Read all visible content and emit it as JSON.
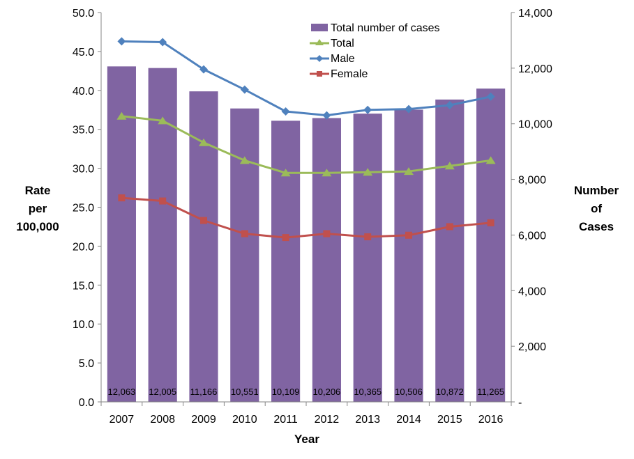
{
  "chart_data": {
    "type": "bar",
    "title": "",
    "categories": [
      "2007",
      "2008",
      "2009",
      "2010",
      "2011",
      "2012",
      "2013",
      "2014",
      "2015",
      "2016"
    ],
    "xlabel": "Year",
    "ylabel_left": [
      "Rate",
      "per",
      "100,000"
    ],
    "ylabel_right": [
      "Number",
      "of",
      "Cases"
    ],
    "ylim_left": [
      0,
      50
    ],
    "ylim_right": [
      0,
      14000
    ],
    "left_ticks": [
      "0.0",
      "5.0",
      "10.0",
      "15.0",
      "20.0",
      "25.0",
      "30.0",
      "35.0",
      "40.0",
      "45.0",
      "50.0"
    ],
    "right_ticks": [
      "-",
      "2,000",
      "4,000",
      "6,000",
      "8,000",
      "10,000",
      "12,000",
      "14,000"
    ],
    "grid": false,
    "legend_position": "top-center",
    "bars": {
      "name": "Total number of cases",
      "axis": "right",
      "color": "#8064a2",
      "values": [
        12063,
        12005,
        11166,
        10551,
        10109,
        10206,
        10365,
        10506,
        10872,
        11265
      ],
      "labels": [
        "12,063",
        "12,005",
        "11,166",
        "10,551",
        "10,109",
        "10,206",
        "10,365",
        "10,506",
        "10,872",
        "11,265"
      ]
    },
    "series": [
      {
        "name": "Total",
        "axis": "left",
        "type": "line",
        "marker": "triangle",
        "color": "#9bbb59",
        "values": [
          36.7,
          36.1,
          33.3,
          31.0,
          29.4,
          29.4,
          29.5,
          29.6,
          30.3,
          31.0
        ]
      },
      {
        "name": "Male",
        "axis": "left",
        "type": "line",
        "marker": "diamond",
        "color": "#4f81bd",
        "values": [
          46.3,
          46.2,
          42.7,
          40.1,
          37.3,
          36.8,
          37.5,
          37.6,
          38.1,
          39.2
        ]
      },
      {
        "name": "Female",
        "axis": "left",
        "type": "line",
        "marker": "square",
        "color": "#c0504d",
        "values": [
          26.2,
          25.8,
          23.3,
          21.6,
          21.1,
          21.6,
          21.2,
          21.4,
          22.5,
          23.0
        ]
      }
    ]
  }
}
